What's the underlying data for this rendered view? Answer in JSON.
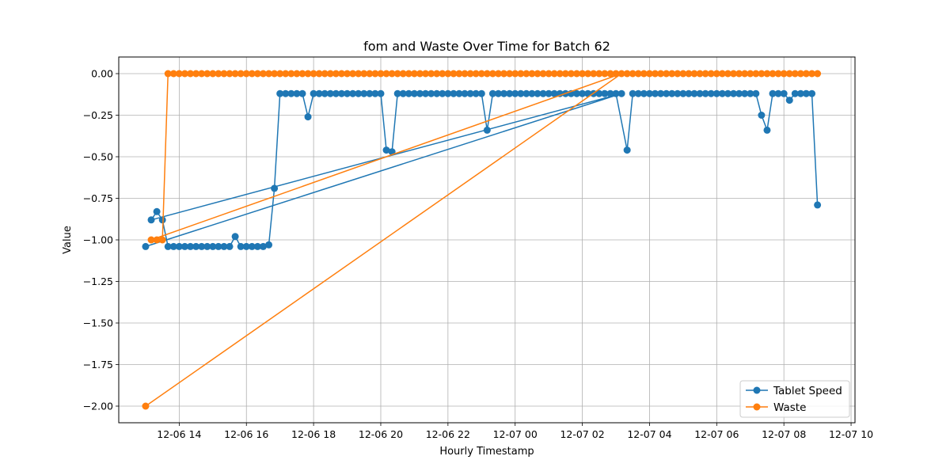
{
  "chart_data": {
    "type": "line",
    "title": "fom and Waste Over Time for Batch 62",
    "xlabel": "Hourly Timestamp",
    "ylabel": "Value",
    "x_ticks": [
      "12-06 14",
      "12-06 16",
      "12-06 18",
      "12-06 20",
      "12-06 22",
      "12-07 00",
      "12-07 02",
      "12-07 04",
      "12-07 06",
      "12-07 08",
      "12-07 10"
    ],
    "y_ticks": [
      "0.00",
      "−0.25",
      "−0.50",
      "−0.75",
      "−1.00",
      "−1.25",
      "−1.50",
      "−1.75",
      "−2.00"
    ],
    "y_tick_values": [
      0,
      -0.25,
      -0.5,
      -0.75,
      -1.0,
      -1.25,
      -1.5,
      -1.75,
      -2.0
    ],
    "xlim": [
      "2024-12-06 12:12",
      "2024-12-07 10:07"
    ],
    "ylim": [
      -2.1,
      0.1
    ],
    "grid": true,
    "legend_position": "lower-right",
    "series": [
      {
        "name": "Tablet Speed",
        "color": "#1f77b4",
        "points": [
          [
            "2024-12-06 13:00",
            -1.04
          ],
          [
            "2024-12-07 03:10",
            -0.12
          ],
          [
            "2024-12-06 13:10",
            -0.88
          ],
          [
            "2024-12-06 13:20",
            -0.83
          ],
          [
            "2024-12-06 13:30",
            -0.88
          ],
          [
            "2024-12-06 13:40",
            -1.04
          ],
          [
            "2024-12-06 13:50",
            -1.04
          ],
          [
            "2024-12-06 14:00",
            -1.04
          ],
          [
            "2024-12-06 14:10",
            -1.04
          ],
          [
            "2024-12-06 14:20",
            -1.04
          ],
          [
            "2024-12-06 14:30",
            -1.04
          ],
          [
            "2024-12-06 14:40",
            -1.04
          ],
          [
            "2024-12-06 14:50",
            -1.04
          ],
          [
            "2024-12-06 15:00",
            -1.04
          ],
          [
            "2024-12-06 15:10",
            -1.04
          ],
          [
            "2024-12-06 15:20",
            -1.04
          ],
          [
            "2024-12-06 15:30",
            -1.04
          ],
          [
            "2024-12-06 15:40",
            -0.98
          ],
          [
            "2024-12-06 15:50",
            -1.04
          ],
          [
            "2024-12-06 16:00",
            -1.04
          ],
          [
            "2024-12-06 16:10",
            -1.04
          ],
          [
            "2024-12-06 16:20",
            -1.04
          ],
          [
            "2024-12-06 16:30",
            -1.04
          ],
          [
            "2024-12-06 16:40",
            -1.03
          ],
          [
            "2024-12-06 16:50",
            -0.69
          ],
          [
            "2024-12-06 17:00",
            -0.12
          ],
          [
            "2024-12-06 17:10",
            -0.12
          ],
          [
            "2024-12-06 17:20",
            -0.12
          ],
          [
            "2024-12-06 17:30",
            -0.12
          ],
          [
            "2024-12-06 17:40",
            -0.12
          ],
          [
            "2024-12-06 17:50",
            -0.26
          ],
          [
            "2024-12-06 18:00",
            -0.12
          ],
          [
            "2024-12-06 18:10",
            -0.12
          ],
          [
            "2024-12-06 18:20",
            -0.12
          ],
          [
            "2024-12-06 18:30",
            -0.12
          ],
          [
            "2024-12-06 18:40",
            -0.12
          ],
          [
            "2024-12-06 18:50",
            -0.12
          ],
          [
            "2024-12-06 19:00",
            -0.12
          ],
          [
            "2024-12-06 19:10",
            -0.12
          ],
          [
            "2024-12-06 19:20",
            -0.12
          ],
          [
            "2024-12-06 19:30",
            -0.12
          ],
          [
            "2024-12-06 19:40",
            -0.12
          ],
          [
            "2024-12-06 19:50",
            -0.12
          ],
          [
            "2024-12-06 20:00",
            -0.12
          ],
          [
            "2024-12-06 20:10",
            -0.46
          ],
          [
            "2024-12-06 20:20",
            -0.47
          ],
          [
            "2024-12-06 20:30",
            -0.12
          ],
          [
            "2024-12-06 20:40",
            -0.12
          ],
          [
            "2024-12-06 20:50",
            -0.12
          ],
          [
            "2024-12-06 21:00",
            -0.12
          ],
          [
            "2024-12-06 21:10",
            -0.12
          ],
          [
            "2024-12-06 21:20",
            -0.12
          ],
          [
            "2024-12-06 21:30",
            -0.12
          ],
          [
            "2024-12-06 21:40",
            -0.12
          ],
          [
            "2024-12-06 21:50",
            -0.12
          ],
          [
            "2024-12-06 22:00",
            -0.12
          ],
          [
            "2024-12-06 22:10",
            -0.12
          ],
          [
            "2024-12-06 22:20",
            -0.12
          ],
          [
            "2024-12-06 22:30",
            -0.12
          ],
          [
            "2024-12-06 22:40",
            -0.12
          ],
          [
            "2024-12-06 22:50",
            -0.12
          ],
          [
            "2024-12-06 23:00",
            -0.12
          ],
          [
            "2024-12-06 23:10",
            -0.34
          ],
          [
            "2024-12-06 23:20",
            -0.12
          ],
          [
            "2024-12-06 23:30",
            -0.12
          ],
          [
            "2024-12-06 23:40",
            -0.12
          ],
          [
            "2024-12-06 23:50",
            -0.12
          ],
          [
            "2024-12-07 00:00",
            -0.12
          ],
          [
            "2024-12-07 00:10",
            -0.12
          ],
          [
            "2024-12-07 00:20",
            -0.12
          ],
          [
            "2024-12-07 00:30",
            -0.12
          ],
          [
            "2024-12-07 00:40",
            -0.12
          ],
          [
            "2024-12-07 00:50",
            -0.12
          ],
          [
            "2024-12-07 01:00",
            -0.12
          ],
          [
            "2024-12-07 01:10",
            -0.12
          ],
          [
            "2024-12-07 01:20",
            -0.12
          ],
          [
            "2024-12-07 01:30",
            -0.12
          ],
          [
            "2024-12-07 01:40",
            -0.12
          ],
          [
            "2024-12-07 01:50",
            -0.12
          ],
          [
            "2024-12-07 02:00",
            -0.12
          ],
          [
            "2024-12-07 02:10",
            -0.12
          ],
          [
            "2024-12-07 02:20",
            -0.12
          ],
          [
            "2024-12-07 02:30",
            -0.12
          ],
          [
            "2024-12-07 02:40",
            -0.12
          ],
          [
            "2024-12-07 02:50",
            -0.12
          ],
          [
            "2024-12-07 03:00",
            -0.12
          ],
          [
            "2024-12-07 03:20",
            -0.46
          ],
          [
            "2024-12-07 03:30",
            -0.12
          ],
          [
            "2024-12-07 03:40",
            -0.12
          ],
          [
            "2024-12-07 03:50",
            -0.12
          ],
          [
            "2024-12-07 04:00",
            -0.12
          ],
          [
            "2024-12-07 04:10",
            -0.12
          ],
          [
            "2024-12-07 04:20",
            -0.12
          ],
          [
            "2024-12-07 04:30",
            -0.12
          ],
          [
            "2024-12-07 04:40",
            -0.12
          ],
          [
            "2024-12-07 04:50",
            -0.12
          ],
          [
            "2024-12-07 05:00",
            -0.12
          ],
          [
            "2024-12-07 05:10",
            -0.12
          ],
          [
            "2024-12-07 05:20",
            -0.12
          ],
          [
            "2024-12-07 05:30",
            -0.12
          ],
          [
            "2024-12-07 05:40",
            -0.12
          ],
          [
            "2024-12-07 05:50",
            -0.12
          ],
          [
            "2024-12-07 06:00",
            -0.12
          ],
          [
            "2024-12-07 06:10",
            -0.12
          ],
          [
            "2024-12-07 06:20",
            -0.12
          ],
          [
            "2024-12-07 06:30",
            -0.12
          ],
          [
            "2024-12-07 06:40",
            -0.12
          ],
          [
            "2024-12-07 06:50",
            -0.12
          ],
          [
            "2024-12-07 07:00",
            -0.12
          ],
          [
            "2024-12-07 07:10",
            -0.12
          ],
          [
            "2024-12-07 07:20",
            -0.25
          ],
          [
            "2024-12-07 07:30",
            -0.34
          ],
          [
            "2024-12-07 07:40",
            -0.12
          ],
          [
            "2024-12-07 07:50",
            -0.12
          ],
          [
            "2024-12-07 08:00",
            -0.12
          ],
          [
            "2024-12-07 08:10",
            -0.16
          ],
          [
            "2024-12-07 08:20",
            -0.12
          ],
          [
            "2024-12-07 08:30",
            -0.12
          ],
          [
            "2024-12-07 08:40",
            -0.12
          ],
          [
            "2024-12-07 08:50",
            -0.12
          ],
          [
            "2024-12-07 09:00",
            -0.79
          ]
        ]
      },
      {
        "name": "Waste",
        "color": "#ff7f0e",
        "points": [
          [
            "2024-12-06 13:00",
            -2.0
          ],
          [
            "2024-12-07 03:10",
            0.0
          ],
          [
            "2024-12-06 13:10",
            -1.0
          ],
          [
            "2024-12-06 13:20",
            -1.0
          ],
          [
            "2024-12-06 13:30",
            -1.0
          ],
          [
            "2024-12-06 13:40",
            0.0
          ],
          [
            "2024-12-06 13:50",
            0.0
          ],
          [
            "2024-12-06 14:00",
            0.0
          ],
          [
            "2024-12-06 14:10",
            0.0
          ],
          [
            "2024-12-06 14:20",
            0.0
          ],
          [
            "2024-12-06 14:30",
            0.0
          ],
          [
            "2024-12-06 14:40",
            0.0
          ],
          [
            "2024-12-06 14:50",
            0.0
          ],
          [
            "2024-12-06 15:00",
            0.0
          ],
          [
            "2024-12-06 15:10",
            0.0
          ],
          [
            "2024-12-06 15:20",
            0.0
          ],
          [
            "2024-12-06 15:30",
            0.0
          ],
          [
            "2024-12-06 15:40",
            0.0
          ],
          [
            "2024-12-06 15:50",
            0.0
          ],
          [
            "2024-12-06 16:00",
            0.0
          ],
          [
            "2024-12-06 16:10",
            0.0
          ],
          [
            "2024-12-06 16:20",
            0.0
          ],
          [
            "2024-12-06 16:30",
            0.0
          ],
          [
            "2024-12-06 16:40",
            0.0
          ],
          [
            "2024-12-06 16:50",
            0.0
          ],
          [
            "2024-12-06 17:00",
            0.0
          ],
          [
            "2024-12-06 17:10",
            0.0
          ],
          [
            "2024-12-06 17:20",
            0.0
          ],
          [
            "2024-12-06 17:30",
            0.0
          ],
          [
            "2024-12-06 17:40",
            0.0
          ],
          [
            "2024-12-06 17:50",
            0.0
          ],
          [
            "2024-12-06 18:00",
            0.0
          ],
          [
            "2024-12-06 18:10",
            0.0
          ],
          [
            "2024-12-06 18:20",
            0.0
          ],
          [
            "2024-12-06 18:30",
            0.0
          ],
          [
            "2024-12-06 18:40",
            0.0
          ],
          [
            "2024-12-06 18:50",
            0.0
          ],
          [
            "2024-12-06 19:00",
            0.0
          ],
          [
            "2024-12-06 19:10",
            0.0
          ],
          [
            "2024-12-06 19:20",
            0.0
          ],
          [
            "2024-12-06 19:30",
            0.0
          ],
          [
            "2024-12-06 19:40",
            0.0
          ],
          [
            "2024-12-06 19:50",
            0.0
          ],
          [
            "2024-12-06 20:00",
            0.0
          ],
          [
            "2024-12-06 20:10",
            0.0
          ],
          [
            "2024-12-06 20:20",
            0.0
          ],
          [
            "2024-12-06 20:30",
            0.0
          ],
          [
            "2024-12-06 20:40",
            0.0
          ],
          [
            "2024-12-06 20:50",
            0.0
          ],
          [
            "2024-12-06 21:00",
            0.0
          ],
          [
            "2024-12-06 21:10",
            0.0
          ],
          [
            "2024-12-06 21:20",
            0.0
          ],
          [
            "2024-12-06 21:30",
            0.0
          ],
          [
            "2024-12-06 21:40",
            0.0
          ],
          [
            "2024-12-06 21:50",
            0.0
          ],
          [
            "2024-12-06 22:00",
            0.0
          ],
          [
            "2024-12-06 22:10",
            0.0
          ],
          [
            "2024-12-06 22:20",
            0.0
          ],
          [
            "2024-12-06 22:30",
            0.0
          ],
          [
            "2024-12-06 22:40",
            0.0
          ],
          [
            "2024-12-06 22:50",
            0.0
          ],
          [
            "2024-12-06 23:00",
            0.0
          ],
          [
            "2024-12-06 23:10",
            0.0
          ],
          [
            "2024-12-06 23:20",
            0.0
          ],
          [
            "2024-12-06 23:30",
            0.0
          ],
          [
            "2024-12-06 23:40",
            0.0
          ],
          [
            "2024-12-06 23:50",
            0.0
          ],
          [
            "2024-12-07 00:00",
            0.0
          ],
          [
            "2024-12-07 00:10",
            0.0
          ],
          [
            "2024-12-07 00:20",
            0.0
          ],
          [
            "2024-12-07 00:30",
            0.0
          ],
          [
            "2024-12-07 00:40",
            0.0
          ],
          [
            "2024-12-07 00:50",
            0.0
          ],
          [
            "2024-12-07 01:00",
            0.0
          ],
          [
            "2024-12-07 01:10",
            0.0
          ],
          [
            "2024-12-07 01:20",
            0.0
          ],
          [
            "2024-12-07 01:30",
            0.0
          ],
          [
            "2024-12-07 01:40",
            0.0
          ],
          [
            "2024-12-07 01:50",
            0.0
          ],
          [
            "2024-12-07 02:00",
            0.0
          ],
          [
            "2024-12-07 02:10",
            0.0
          ],
          [
            "2024-12-07 02:20",
            0.0
          ],
          [
            "2024-12-07 02:30",
            0.0
          ],
          [
            "2024-12-07 02:40",
            0.0
          ],
          [
            "2024-12-07 02:50",
            0.0
          ],
          [
            "2024-12-07 03:00",
            0.0
          ],
          [
            "2024-12-07 03:20",
            0.0
          ],
          [
            "2024-12-07 03:30",
            0.0
          ],
          [
            "2024-12-07 03:40",
            0.0
          ],
          [
            "2024-12-07 03:50",
            0.0
          ],
          [
            "2024-12-07 04:00",
            0.0
          ],
          [
            "2024-12-07 04:10",
            0.0
          ],
          [
            "2024-12-07 04:20",
            0.0
          ],
          [
            "2024-12-07 04:30",
            0.0
          ],
          [
            "2024-12-07 04:40",
            0.0
          ],
          [
            "2024-12-07 04:50",
            0.0
          ],
          [
            "2024-12-07 05:00",
            0.0
          ],
          [
            "2024-12-07 05:10",
            0.0
          ],
          [
            "2024-12-07 05:20",
            0.0
          ],
          [
            "2024-12-07 05:30",
            0.0
          ],
          [
            "2024-12-07 05:40",
            0.0
          ],
          [
            "2024-12-07 05:50",
            0.0
          ],
          [
            "2024-12-07 06:00",
            0.0
          ],
          [
            "2024-12-07 06:10",
            0.0
          ],
          [
            "2024-12-07 06:20",
            0.0
          ],
          [
            "2024-12-07 06:30",
            0.0
          ],
          [
            "2024-12-07 06:40",
            0.0
          ],
          [
            "2024-12-07 06:50",
            0.0
          ],
          [
            "2024-12-07 07:00",
            0.0
          ],
          [
            "2024-12-07 07:10",
            0.0
          ],
          [
            "2024-12-07 07:20",
            0.0
          ],
          [
            "2024-12-07 07:30",
            0.0
          ],
          [
            "2024-12-07 07:40",
            0.0
          ],
          [
            "2024-12-07 07:50",
            0.0
          ],
          [
            "2024-12-07 08:00",
            0.0
          ],
          [
            "2024-12-07 08:10",
            0.0
          ],
          [
            "2024-12-07 08:20",
            0.0
          ],
          [
            "2024-12-07 08:30",
            0.0
          ],
          [
            "2024-12-07 08:40",
            0.0
          ],
          [
            "2024-12-07 08:50",
            0.0
          ],
          [
            "2024-12-07 09:00",
            0.0
          ]
        ]
      }
    ]
  }
}
